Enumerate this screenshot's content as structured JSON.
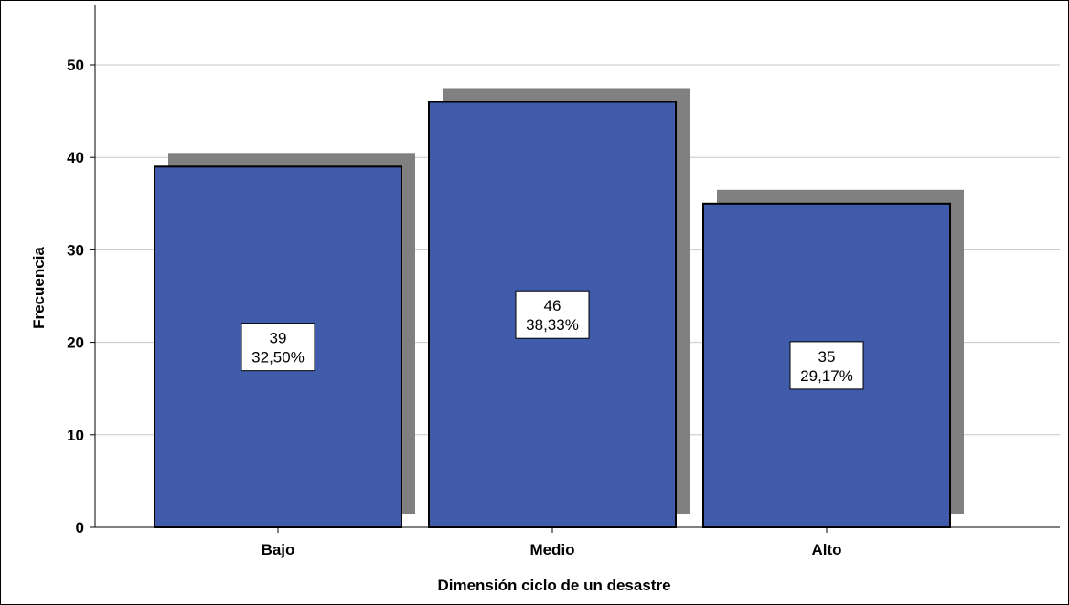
{
  "chart_data": {
    "type": "bar",
    "categories": [
      "Bajo",
      "Medio",
      "Alto"
    ],
    "values": [
      39,
      46,
      35
    ],
    "percent_labels": [
      "32,50%",
      "38,33%",
      "29,17%"
    ],
    "xlabel": "Dimensión ciclo de un desastre",
    "ylabel": "Frecuencia",
    "ylim": [
      0,
      55
    ],
    "yticks": [
      0,
      10,
      20,
      30,
      40,
      50
    ],
    "grid": true,
    "bar_color": "#3F5BA9",
    "shadow_color": "#808080",
    "grid_color": "#C8C8C8"
  }
}
